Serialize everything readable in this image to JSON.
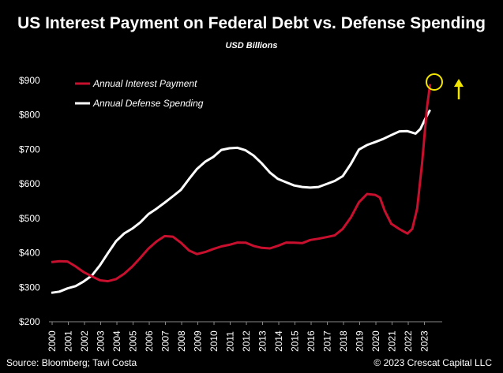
{
  "title": "US Interest Payment on Federal Debt vs. Defense Spending",
  "subtitle": "USD Billions",
  "footer": {
    "source": "Source: Bloomberg; Tavi Costa",
    "copyright": "© 2023 Crescat Capital LLC"
  },
  "colors": {
    "background": "#000000",
    "interest": "#c8102e",
    "defense": "#ffffff",
    "highlight": "#f2e600"
  },
  "chart_data": {
    "type": "line",
    "ylim": [
      200,
      900
    ],
    "yticks": [
      200,
      300,
      400,
      500,
      600,
      700,
      800,
      900
    ],
    "ytick_labels": [
      "$200",
      "$300",
      "$400",
      "$500",
      "$600",
      "$700",
      "$800",
      "$900"
    ],
    "xlim": [
      2000,
      2024
    ],
    "xticks": [
      2000,
      2001,
      2002,
      2003,
      2004,
      2005,
      2006,
      2007,
      2008,
      2009,
      2010,
      2011,
      2012,
      2013,
      2014,
      2015,
      2016,
      2017,
      2018,
      2019,
      2020,
      2021,
      2022,
      2023
    ],
    "xtick_labels": [
      "2000",
      "2001",
      "2002",
      "2003",
      "2004",
      "2005",
      "2006",
      "2007",
      "2008",
      "2009",
      "2010",
      "2011",
      "2012",
      "2013",
      "2014",
      "2015",
      "2016",
      "2017",
      "2018",
      "2019",
      "2020",
      "2021",
      "2022",
      "2023"
    ],
    "legend_position": "top-left",
    "grid": false,
    "series": [
      {
        "name": "Annual Interest Payment",
        "color": "#c8102e",
        "x": [
          2000,
          2000.5,
          2001,
          2001.5,
          2002,
          2002.5,
          2003,
          2003.5,
          2004,
          2004.5,
          2005,
          2005.5,
          2006,
          2006.5,
          2007,
          2007.5,
          2008,
          2008.5,
          2009,
          2009.5,
          2010,
          2010.5,
          2011,
          2011.5,
          2012,
          2012.5,
          2013,
          2013.5,
          2014,
          2014.5,
          2015,
          2015.5,
          2016,
          2016.5,
          2017,
          2017.5,
          2018,
          2018.5,
          2019,
          2019.5,
          2020,
          2020.3,
          2020.6,
          2021,
          2021.5,
          2022,
          2022.3,
          2022.6,
          2022.9,
          2023.2,
          2023.4
        ],
        "values": [
          373,
          378,
          375,
          362,
          345,
          333,
          322,
          318,
          322,
          338,
          360,
          385,
          410,
          433,
          448,
          448,
          432,
          408,
          398,
          403,
          413,
          420,
          425,
          428,
          427,
          418,
          413,
          410,
          418,
          428,
          432,
          430,
          438,
          442,
          446,
          452,
          472,
          505,
          545,
          570,
          567,
          560,
          520,
          482,
          468,
          458,
          470,
          530,
          660,
          820,
          890
        ]
      },
      {
        "name": "Annual Defense Spending",
        "color": "#ffffff",
        "x": [
          2000,
          2000.5,
          2001,
          2001.5,
          2002,
          2002.5,
          2003,
          2003.5,
          2004,
          2004.5,
          2005,
          2005.5,
          2006,
          2006.5,
          2007,
          2007.5,
          2008,
          2008.5,
          2009,
          2009.5,
          2010,
          2010.5,
          2011,
          2011.5,
          2012,
          2012.5,
          2013,
          2013.5,
          2014,
          2014.5,
          2015,
          2015.5,
          2016,
          2016.5,
          2017,
          2017.5,
          2018,
          2018.5,
          2019,
          2019.5,
          2020,
          2020.5,
          2021,
          2021.5,
          2022,
          2022.5,
          2022.8,
          2023.1,
          2023.4
        ],
        "values": [
          284,
          290,
          297,
          305,
          318,
          335,
          365,
          400,
          432,
          455,
          470,
          488,
          510,
          528,
          545,
          565,
          585,
          615,
          645,
          665,
          680,
          700,
          705,
          703,
          695,
          680,
          658,
          630,
          612,
          603,
          598,
          593,
          590,
          592,
          600,
          610,
          625,
          660,
          698,
          712,
          720,
          730,
          740,
          750,
          752,
          748,
          760,
          790,
          815
        ]
      }
    ]
  }
}
